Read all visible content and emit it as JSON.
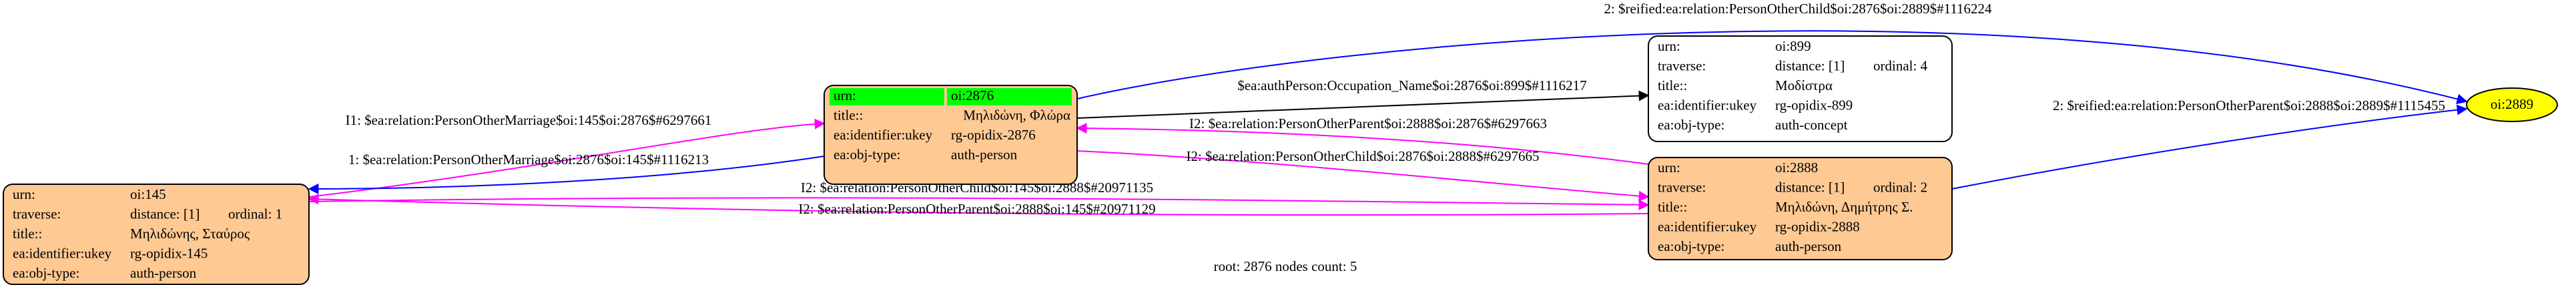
{
  "nodes": [
    {
      "rows": [
        [
          "urn:",
          "oi:145"
        ],
        [
          "traverse:",
          "distance: [1]",
          "ordinal: 1"
        ],
        [
          "title::",
          "Μηλιδώνης, Σταύρος"
        ],
        [
          "ea:identifier:ukey",
          "rg-opidix-145"
        ],
        [
          "ea:obj-type:",
          "auth-person"
        ]
      ]
    },
    {
      "rows": [
        [
          "urn:",
          "oi:2876"
        ],
        [
          "title::",
          "Μηλιδώνη, Φλώρα"
        ],
        [
          "ea:identifier:ukey",
          "rg-opidix-2876"
        ],
        [
          "ea:obj-type:",
          "auth-person"
        ]
      ]
    },
    {
      "rows": [
        [
          "urn:",
          "oi:899"
        ],
        [
          "traverse:",
          "distance: [1]",
          "ordinal: 4"
        ],
        [
          "title::",
          "Μοδίστρα"
        ],
        [
          "ea:identifier:ukey",
          "rg-opidix-899"
        ],
        [
          "ea:obj-type:",
          "auth-concept"
        ]
      ]
    },
    {
      "rows": [
        [
          "urn:",
          "oi:2888"
        ],
        [
          "traverse:",
          "distance: [1]",
          "ordinal: 2"
        ],
        [
          "title::",
          "Μηλιδώνη, Δημήτρης Σ."
        ],
        [
          "ea:identifier:ukey",
          "rg-opidix-2888"
        ],
        [
          "ea:obj-type:",
          "auth-person"
        ]
      ]
    },
    {
      "label": "oi:2889"
    }
  ],
  "edges": [
    {
      "label": "2: $reified:ea:relation:PersonOtherChild$oi:2876$oi:2889$#1116224"
    },
    {
      "label": "$ea:authPerson:Occupation_Name$oi:2876$oi:899$#1116217"
    },
    {
      "label": "I2: $ea:relation:PersonOtherParent$oi:2888$oi:2876$#6297663"
    },
    {
      "label": "I2: $ea:relation:PersonOtherChild$oi:2876$oi:2888$#6297665"
    },
    {
      "label": "2: $reified:ea:relation:PersonOtherParent$oi:2888$oi:2889$#1115455"
    },
    {
      "label": "I1: $ea:relation:PersonOtherMarriage$oi:145$oi:2876$#6297661"
    },
    {
      "label": "1: $ea:relation:PersonOtherMarriage$oi:2876$oi:145$#1116213"
    },
    {
      "label": "I2: $ea:relation:PersonOtherChild$oi:145$oi:2888$#20971135"
    },
    {
      "label": "I2: $ea:relation:PersonOtherParent$oi:2888$oi:145$#20971129"
    }
  ],
  "caption": "root: 2876 nodes count: 5"
}
